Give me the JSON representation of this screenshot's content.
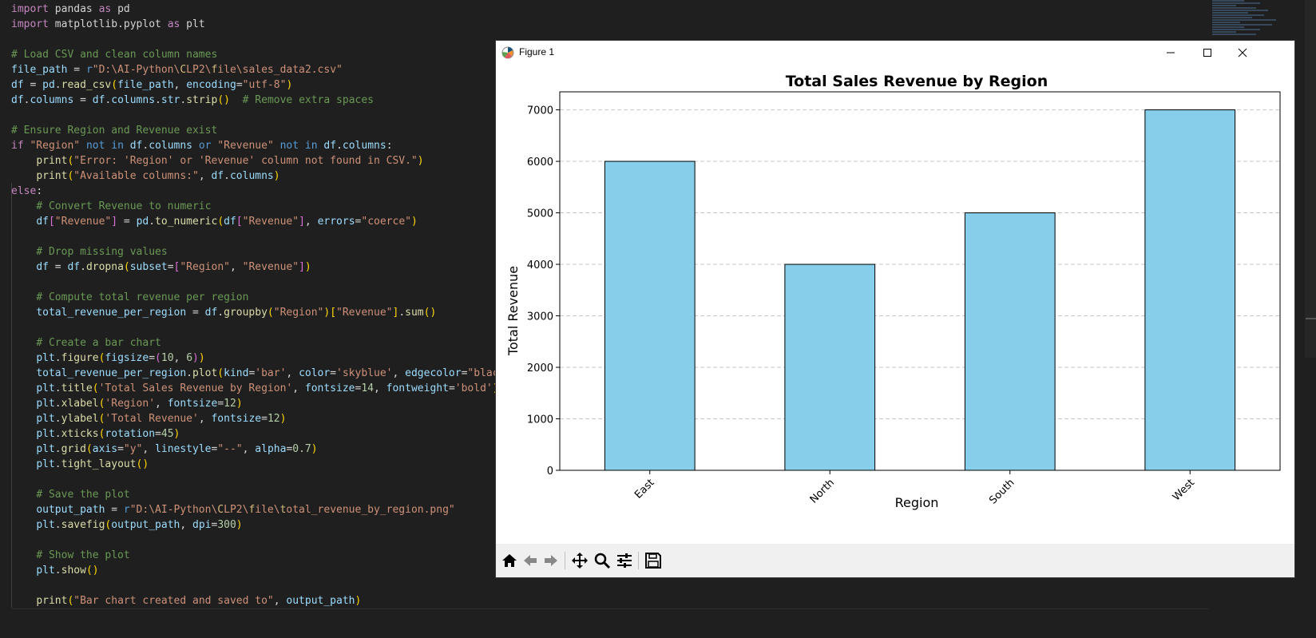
{
  "editor": {
    "lines": [
      [
        [
          "k",
          "import"
        ],
        [
          "t",
          " pandas "
        ],
        [
          "k",
          "as"
        ],
        [
          "t",
          " pd"
        ]
      ],
      [
        [
          "k",
          "import"
        ],
        [
          "t",
          " matplotlib.pyplot "
        ],
        [
          "k",
          "as"
        ],
        [
          "t",
          " plt"
        ]
      ],
      [],
      [
        [
          "c",
          "# Load CSV and clean column names"
        ]
      ],
      [
        [
          "v",
          "file_path"
        ],
        [
          "t",
          " = "
        ],
        [
          "k2",
          "r"
        ],
        [
          "s",
          "\"D:\\AI-Python\\"
        ],
        [
          "esc",
          "C"
        ],
        [
          "s",
          "LP2\\"
        ],
        [
          "esc",
          "f"
        ],
        [
          "s",
          "ile\\sales_data2.csv\""
        ]
      ],
      [
        [
          "v",
          "df"
        ],
        [
          "t",
          " = "
        ],
        [
          "v",
          "pd"
        ],
        [
          "t",
          "."
        ],
        [
          "f",
          "read_csv"
        ],
        [
          "p",
          "("
        ],
        [
          "v",
          "file_path"
        ],
        [
          "t",
          ", "
        ],
        [
          "v",
          "encoding"
        ],
        [
          "t",
          "="
        ],
        [
          "s",
          "\"utf-8\""
        ],
        [
          "p",
          ")"
        ]
      ],
      [
        [
          "v",
          "df"
        ],
        [
          "t",
          "."
        ],
        [
          "v",
          "columns"
        ],
        [
          "t",
          " = "
        ],
        [
          "v",
          "df"
        ],
        [
          "t",
          "."
        ],
        [
          "v",
          "columns"
        ],
        [
          "t",
          "."
        ],
        [
          "v",
          "str"
        ],
        [
          "t",
          "."
        ],
        [
          "f",
          "strip"
        ],
        [
          "p",
          "()"
        ],
        [
          "t",
          "  "
        ],
        [
          "c",
          "# Remove extra spaces"
        ]
      ],
      [],
      [
        [
          "c",
          "# Ensure Region and Revenue exist"
        ]
      ],
      [
        [
          "k",
          "if"
        ],
        [
          "t",
          " "
        ],
        [
          "s",
          "\"Region\""
        ],
        [
          "t",
          " "
        ],
        [
          "k2",
          "not"
        ],
        [
          "t",
          " "
        ],
        [
          "k2",
          "in"
        ],
        [
          "t",
          " "
        ],
        [
          "v",
          "df"
        ],
        [
          "t",
          "."
        ],
        [
          "v",
          "columns"
        ],
        [
          "t",
          " "
        ],
        [
          "k2",
          "or"
        ],
        [
          "t",
          " "
        ],
        [
          "s",
          "\"Revenue\""
        ],
        [
          "t",
          " "
        ],
        [
          "k2",
          "not"
        ],
        [
          "t",
          " "
        ],
        [
          "k2",
          "in"
        ],
        [
          "t",
          " "
        ],
        [
          "v",
          "df"
        ],
        [
          "t",
          "."
        ],
        [
          "v",
          "columns"
        ],
        [
          "t",
          ":"
        ]
      ],
      [
        [
          "t",
          "    "
        ],
        [
          "f",
          "print"
        ],
        [
          "p",
          "("
        ],
        [
          "s",
          "\"Error: 'Region' or 'Revenue' column not found in CSV.\""
        ],
        [
          "p",
          ")"
        ]
      ],
      [
        [
          "t",
          "    "
        ],
        [
          "f",
          "print"
        ],
        [
          "p",
          "("
        ],
        [
          "s",
          "\"Available columns:\""
        ],
        [
          "t",
          ", "
        ],
        [
          "v",
          "df"
        ],
        [
          "t",
          "."
        ],
        [
          "v",
          "columns"
        ],
        [
          "p",
          ")"
        ]
      ],
      [
        [
          "k",
          "else"
        ],
        [
          "t",
          ":"
        ]
      ],
      [
        [
          "t",
          "    "
        ],
        [
          "c",
          "# Convert Revenue to numeric"
        ]
      ],
      [
        [
          "t",
          "    "
        ],
        [
          "v",
          "df"
        ],
        [
          "pp",
          "["
        ],
        [
          "s",
          "\"Revenue\""
        ],
        [
          "pp",
          "]"
        ],
        [
          "t",
          " = "
        ],
        [
          "v",
          "pd"
        ],
        [
          "t",
          "."
        ],
        [
          "f",
          "to_numeric"
        ],
        [
          "p",
          "("
        ],
        [
          "v",
          "df"
        ],
        [
          "pp",
          "["
        ],
        [
          "s",
          "\"Revenue\""
        ],
        [
          "pp",
          "]"
        ],
        [
          "t",
          ", "
        ],
        [
          "v",
          "errors"
        ],
        [
          "t",
          "="
        ],
        [
          "s",
          "\"coerce\""
        ],
        [
          "p",
          ")"
        ]
      ],
      [],
      [
        [
          "t",
          "    "
        ],
        [
          "c",
          "# Drop missing values"
        ]
      ],
      [
        [
          "t",
          "    "
        ],
        [
          "v",
          "df"
        ],
        [
          "t",
          " = "
        ],
        [
          "v",
          "df"
        ],
        [
          "t",
          "."
        ],
        [
          "f",
          "dropna"
        ],
        [
          "p",
          "("
        ],
        [
          "v",
          "subset"
        ],
        [
          "t",
          "="
        ],
        [
          "pp",
          "["
        ],
        [
          "s",
          "\"Region\""
        ],
        [
          "t",
          ", "
        ],
        [
          "s",
          "\"Revenue\""
        ],
        [
          "pp",
          "]"
        ],
        [
          "p",
          ")"
        ]
      ],
      [],
      [
        [
          "t",
          "    "
        ],
        [
          "c",
          "# Compute total revenue per region"
        ]
      ],
      [
        [
          "t",
          "    "
        ],
        [
          "v",
          "total_revenue_per_region"
        ],
        [
          "t",
          " = "
        ],
        [
          "v",
          "df"
        ],
        [
          "t",
          "."
        ],
        [
          "f",
          "groupby"
        ],
        [
          "p",
          "("
        ],
        [
          "s",
          "\"Region\""
        ],
        [
          "p",
          ")"
        ],
        [
          "p",
          "["
        ],
        [
          "s",
          "\"Revenue\""
        ],
        [
          "p",
          "]"
        ],
        [
          "t",
          "."
        ],
        [
          "f",
          "sum"
        ],
        [
          "p",
          "()"
        ]
      ],
      [],
      [
        [
          "t",
          "    "
        ],
        [
          "c",
          "# Create a bar chart"
        ]
      ],
      [
        [
          "t",
          "    "
        ],
        [
          "v",
          "plt"
        ],
        [
          "t",
          "."
        ],
        [
          "f",
          "figure"
        ],
        [
          "p",
          "("
        ],
        [
          "v",
          "figsize"
        ],
        [
          "t",
          "="
        ],
        [
          "pp",
          "("
        ],
        [
          "n",
          "10"
        ],
        [
          "t",
          ", "
        ],
        [
          "n",
          "6"
        ],
        [
          "pp",
          ")"
        ],
        [
          "p",
          ")"
        ]
      ],
      [
        [
          "t",
          "    "
        ],
        [
          "v",
          "total_revenue_per_region"
        ],
        [
          "t",
          "."
        ],
        [
          "f",
          "plot"
        ],
        [
          "p",
          "("
        ],
        [
          "v",
          "kind"
        ],
        [
          "t",
          "="
        ],
        [
          "s",
          "'bar'"
        ],
        [
          "t",
          ", "
        ],
        [
          "v",
          "color"
        ],
        [
          "t",
          "="
        ],
        [
          "s",
          "'skyblue'"
        ],
        [
          "t",
          ", "
        ],
        [
          "v",
          "edgecolor"
        ],
        [
          "t",
          "="
        ],
        [
          "s",
          "\"black\""
        ]
      ],
      [
        [
          "t",
          "    "
        ],
        [
          "v",
          "plt"
        ],
        [
          "t",
          "."
        ],
        [
          "f",
          "title"
        ],
        [
          "p",
          "("
        ],
        [
          "s",
          "'Total Sales Revenue by Region'"
        ],
        [
          "t",
          ", "
        ],
        [
          "v",
          "fontsize"
        ],
        [
          "t",
          "="
        ],
        [
          "n",
          "14"
        ],
        [
          "t",
          ", "
        ],
        [
          "v",
          "fontweight"
        ],
        [
          "t",
          "="
        ],
        [
          "s",
          "'bold'"
        ],
        [
          "p",
          ")"
        ]
      ],
      [
        [
          "t",
          "    "
        ],
        [
          "v",
          "plt"
        ],
        [
          "t",
          "."
        ],
        [
          "f",
          "xlabel"
        ],
        [
          "p",
          "("
        ],
        [
          "s",
          "'Region'"
        ],
        [
          "t",
          ", "
        ],
        [
          "v",
          "fontsize"
        ],
        [
          "t",
          "="
        ],
        [
          "n",
          "12"
        ],
        [
          "p",
          ")"
        ]
      ],
      [
        [
          "t",
          "    "
        ],
        [
          "v",
          "plt"
        ],
        [
          "t",
          "."
        ],
        [
          "f",
          "ylabel"
        ],
        [
          "p",
          "("
        ],
        [
          "s",
          "'Total Revenue'"
        ],
        [
          "t",
          ", "
        ],
        [
          "v",
          "fontsize"
        ],
        [
          "t",
          "="
        ],
        [
          "n",
          "12"
        ],
        [
          "p",
          ")"
        ]
      ],
      [
        [
          "t",
          "    "
        ],
        [
          "v",
          "plt"
        ],
        [
          "t",
          "."
        ],
        [
          "f",
          "xticks"
        ],
        [
          "p",
          "("
        ],
        [
          "v",
          "rotation"
        ],
        [
          "t",
          "="
        ],
        [
          "n",
          "45"
        ],
        [
          "p",
          ")"
        ]
      ],
      [
        [
          "t",
          "    "
        ],
        [
          "v",
          "plt"
        ],
        [
          "t",
          "."
        ],
        [
          "f",
          "grid"
        ],
        [
          "p",
          "("
        ],
        [
          "v",
          "axis"
        ],
        [
          "t",
          "="
        ],
        [
          "s",
          "\"y\""
        ],
        [
          "t",
          ", "
        ],
        [
          "v",
          "linestyle"
        ],
        [
          "t",
          "="
        ],
        [
          "s",
          "\"--\""
        ],
        [
          "t",
          ", "
        ],
        [
          "v",
          "alpha"
        ],
        [
          "t",
          "="
        ],
        [
          "n",
          "0.7"
        ],
        [
          "p",
          ")"
        ]
      ],
      [
        [
          "t",
          "    "
        ],
        [
          "v",
          "plt"
        ],
        [
          "t",
          "."
        ],
        [
          "f",
          "tight_layout"
        ],
        [
          "p",
          "()"
        ]
      ],
      [],
      [
        [
          "t",
          "    "
        ],
        [
          "c",
          "# Save the plot"
        ]
      ],
      [
        [
          "t",
          "    "
        ],
        [
          "v",
          "output_path"
        ],
        [
          "t",
          " = "
        ],
        [
          "k2",
          "r"
        ],
        [
          "s",
          "\"D:\\AI-Python\\"
        ],
        [
          "esc",
          "C"
        ],
        [
          "s",
          "LP2\\"
        ],
        [
          "esc",
          "f"
        ],
        [
          "s",
          "ile\\"
        ],
        [
          "esc",
          "t"
        ],
        [
          "s",
          "otal_revenue_by_region.png\""
        ]
      ],
      [
        [
          "t",
          "    "
        ],
        [
          "v",
          "plt"
        ],
        [
          "t",
          "."
        ],
        [
          "f",
          "savefig"
        ],
        [
          "p",
          "("
        ],
        [
          "v",
          "output_path"
        ],
        [
          "t",
          ", "
        ],
        [
          "v",
          "dpi"
        ],
        [
          "t",
          "="
        ],
        [
          "n",
          "300"
        ],
        [
          "p",
          ")"
        ]
      ],
      [],
      [
        [
          "t",
          "    "
        ],
        [
          "c",
          "# Show the plot"
        ]
      ],
      [
        [
          "t",
          "    "
        ],
        [
          "v",
          "plt"
        ],
        [
          "t",
          "."
        ],
        [
          "f",
          "show"
        ],
        [
          "p",
          "()"
        ]
      ],
      [],
      [
        [
          "t",
          "    "
        ],
        [
          "f",
          "print"
        ],
        [
          "p",
          "("
        ],
        [
          "s",
          "\"Bar chart created and saved to\""
        ],
        [
          "t",
          ", "
        ],
        [
          "v",
          "output_path"
        ],
        [
          "p",
          ")"
        ]
      ]
    ]
  },
  "figure_window": {
    "title": "Figure 1",
    "minimize_icon": "minimize-icon",
    "maximize_icon": "maximize-icon",
    "close_icon": "close-icon"
  },
  "toolbar": {
    "icons": [
      "home-icon",
      "back-icon",
      "forward-icon",
      "pan-icon",
      "zoom-icon",
      "configure-subplots-icon",
      "save-icon"
    ]
  },
  "chart_data": {
    "type": "bar",
    "title": "Total Sales Revenue by Region",
    "xlabel": "Region",
    "ylabel": "Total Revenue",
    "categories": [
      "East",
      "North",
      "South",
      "West"
    ],
    "values": [
      6000,
      4000,
      5000,
      7000
    ],
    "ylim": [
      0,
      7350
    ],
    "yticks": [
      0,
      1000,
      2000,
      3000,
      4000,
      5000,
      6000,
      7000
    ],
    "x_tick_rotation": 45,
    "grid": "y dashed",
    "bar_color": "#87ceeb",
    "edge_color": "#000000"
  }
}
